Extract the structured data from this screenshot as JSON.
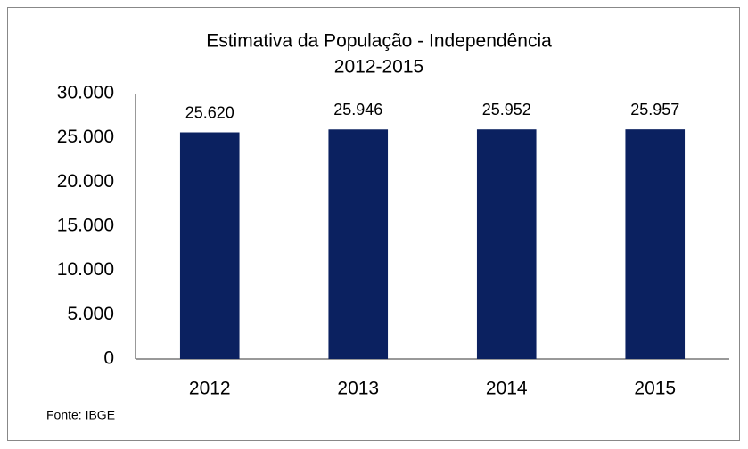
{
  "chart_data": {
    "type": "bar",
    "title": "Estimativa da População - Independência",
    "subtitle": "2012-2015",
    "categories": [
      "2012",
      "2013",
      "2014",
      "2015"
    ],
    "values": [
      25620,
      25946,
      25952,
      25957
    ],
    "value_labels": [
      "25.620",
      "25.946",
      "25.952",
      "25.957"
    ],
    "color": "#0b2160",
    "ylim": [
      0,
      30000
    ],
    "yticks": [
      0,
      {
        "value": 5000,
        "label": "5.000"
      },
      {
        "value": 10000,
        "label": "10.000"
      },
      {
        "value": 15000,
        "label": "15.000"
      },
      {
        "value": 20000,
        "label": "20.000"
      },
      {
        "value": 25000,
        "label": "25.000"
      },
      {
        "value": 30000,
        "label": "30.000"
      }
    ],
    "grid": false,
    "source": "Fonte: IBGE"
  }
}
